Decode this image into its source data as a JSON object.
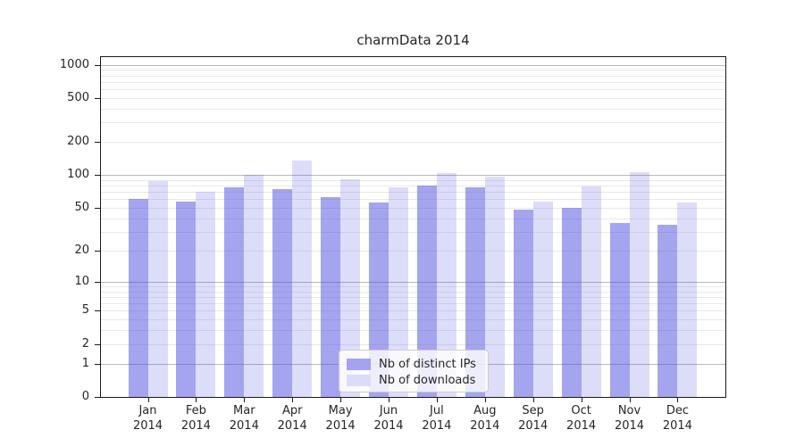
{
  "chart_data": {
    "type": "bar",
    "title": "charmData 2014",
    "x_axis": {
      "months": [
        "Jan",
        "Feb",
        "Mar",
        "Apr",
        "May",
        "Jun",
        "Jul",
        "Aug",
        "Sep",
        "Oct",
        "Nov",
        "Dec"
      ],
      "year": "2014"
    },
    "series": [
      {
        "name": "Nb of distinct IPs",
        "color": "#a3a3ef",
        "fill": "rgba(73,73,224,0.50)",
        "values": [
          61,
          57,
          78,
          75,
          63,
          56,
          81,
          77,
          48,
          50,
          36,
          35
        ]
      },
      {
        "name": "Nb of downloads",
        "color": "#dcdcf9",
        "fill": "rgba(73,73,224,0.19)",
        "values": [
          89,
          70,
          101,
          135,
          91,
          77,
          105,
          97,
          57,
          79,
          106,
          56
        ]
      }
    ],
    "y_axis": {
      "scale": "symlog",
      "tick_labels": [
        1000,
        500,
        200,
        100,
        50,
        20,
        10,
        5,
        2,
        1,
        0
      ],
      "major_gridlines": [
        1,
        10,
        100,
        1000
      ],
      "minor_gridlines": [
        2,
        3,
        4,
        5,
        6,
        7,
        8,
        9,
        20,
        30,
        40,
        50,
        60,
        70,
        80,
        90,
        200,
        300,
        400,
        500,
        600,
        700,
        800,
        900
      ],
      "ylim": [
        0,
        1200
      ]
    },
    "legend": {
      "position": "lower center",
      "items": [
        "Nb of distinct IPs",
        "Nb of downloads"
      ]
    },
    "colors": {
      "grid_major": "#b8b8b8",
      "grid_minor": "#e9e9e9",
      "spine": "#1a1a1a",
      "text": "#262626"
    }
  }
}
